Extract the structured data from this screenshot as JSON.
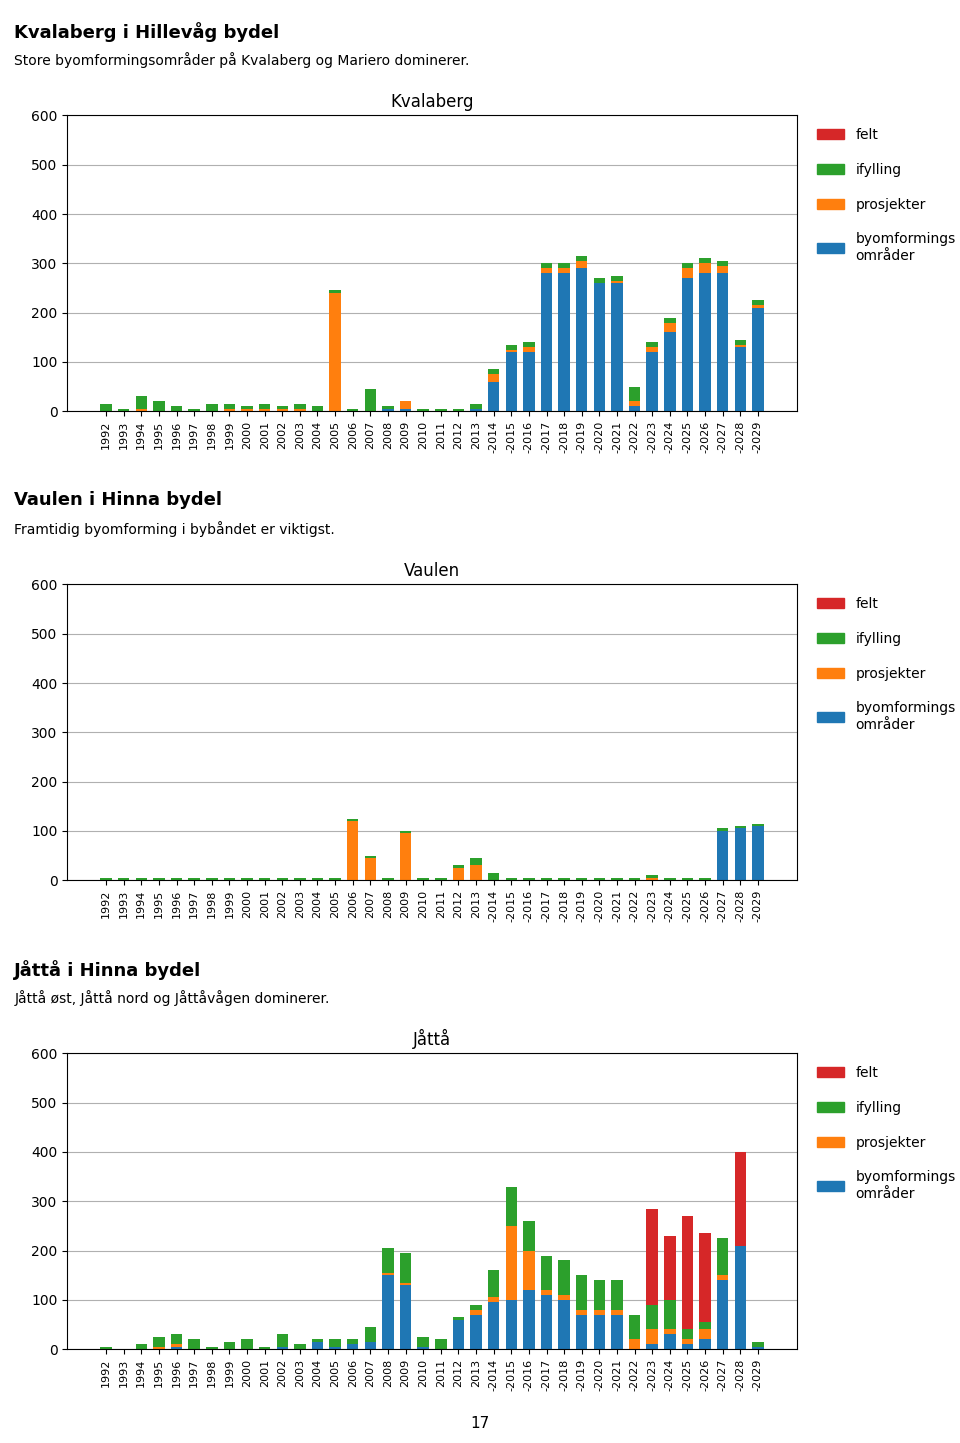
{
  "chart_data": [
    {
      "type": "bar",
      "stacked": true,
      "grid": true,
      "legend": "upper left",
      "title": "Kvalaberg",
      "annotations": [
        "Kvalaberg i Hillevåg bydel"
      ],
      "subtitle": "Store byomformingsområder på Kvalaberg og Mariero dominerer.",
      "categories": [
        "1992",
        "1993",
        "1994",
        "1995",
        "1996",
        "1997",
        "1998",
        "1999",
        "2000",
        "2001",
        "2002",
        "2003",
        "2004",
        "2005",
        "2006",
        "2007",
        "2008",
        "2009",
        "2010",
        "2011",
        "2012",
        "2013",
        "-2014",
        "-2015",
        "-2016",
        "-2017",
        "-2018",
        "-2019",
        "-2020",
        "-2021",
        "-2022",
        "-2023",
        "-2024",
        "-2025",
        "-2026",
        "-2027",
        "-2028",
        "-2029"
      ],
      "ylim": [
        0,
        600
      ],
      "yticks": [
        0,
        100,
        200,
        300,
        400,
        500,
        600
      ],
      "series": [
        {
          "name": "byomformings\nområder",
          "values": [
            0,
            0,
            0,
            0,
            0,
            0,
            0,
            0,
            0,
            0,
            0,
            0,
            0,
            0,
            0,
            0,
            5,
            5,
            0,
            0,
            0,
            5,
            60,
            120,
            120,
            280,
            280,
            290,
            260,
            260,
            10,
            120,
            160,
            270,
            280,
            280,
            130,
            210
          ]
        },
        {
          "name": "prosjekter",
          "values": [
            0,
            0,
            5,
            0,
            0,
            0,
            0,
            5,
            5,
            5,
            5,
            5,
            0,
            240,
            0,
            0,
            0,
            15,
            0,
            0,
            0,
            0,
            15,
            5,
            10,
            10,
            10,
            15,
            0,
            5,
            10,
            10,
            20,
            20,
            20,
            15,
            5,
            5
          ]
        },
        {
          "name": "ifylling",
          "values": [
            15,
            5,
            25,
            20,
            10,
            5,
            15,
            10,
            5,
            10,
            5,
            10,
            10,
            5,
            5,
            45,
            5,
            0,
            5,
            5,
            5,
            10,
            10,
            10,
            10,
            10,
            10,
            10,
            10,
            10,
            30,
            10,
            10,
            10,
            10,
            10,
            10,
            10
          ]
        },
        {
          "name": "felt",
          "values": [
            0,
            0,
            0,
            0,
            0,
            0,
            0,
            0,
            0,
            0,
            0,
            0,
            0,
            0,
            0,
            0,
            0,
            0,
            0,
            0,
            0,
            0,
            0,
            0,
            0,
            0,
            0,
            0,
            0,
            0,
            0,
            0,
            0,
            0,
            0,
            0,
            0,
            0
          ]
        }
      ]
    },
    {
      "type": "bar",
      "stacked": true,
      "grid": true,
      "legend": "upper left",
      "title": "Vaulen",
      "annotations": [
        "Vaulen i Hinna bydel"
      ],
      "subtitle": "Framtidig byomforming i bybåndet er viktigst.",
      "categories": [
        "1992",
        "1993",
        "1994",
        "1995",
        "1996",
        "1997",
        "1998",
        "1999",
        "2000",
        "2001",
        "2002",
        "2003",
        "2004",
        "2005",
        "2006",
        "2007",
        "2008",
        "2009",
        "2010",
        "2011",
        "2012",
        "2013",
        "-2014",
        "-2015",
        "-2016",
        "-2017",
        "-2018",
        "-2019",
        "-2020",
        "-2021",
        "-2022",
        "-2023",
        "-2024",
        "-2025",
        "-2026",
        "-2027",
        "-2028",
        "-2029"
      ],
      "ylim": [
        0,
        600
      ],
      "yticks": [
        0,
        100,
        200,
        300,
        400,
        500,
        600
      ],
      "series": [
        {
          "name": "byomformings\nområder",
          "values": [
            0,
            0,
            0,
            0,
            0,
            0,
            0,
            0,
            0,
            0,
            0,
            0,
            0,
            0,
            0,
            0,
            0,
            0,
            0,
            0,
            0,
            0,
            0,
            0,
            0,
            0,
            0,
            0,
            0,
            0,
            0,
            0,
            0,
            0,
            0,
            100,
            105,
            110
          ]
        },
        {
          "name": "prosjekter",
          "values": [
            0,
            0,
            0,
            0,
            0,
            0,
            0,
            0,
            0,
            0,
            0,
            0,
            0,
            0,
            120,
            45,
            0,
            95,
            0,
            0,
            25,
            30,
            0,
            0,
            0,
            0,
            0,
            0,
            0,
            0,
            0,
            5,
            0,
            0,
            0,
            0,
            0,
            0
          ]
        },
        {
          "name": "ifylling",
          "values": [
            5,
            5,
            5,
            5,
            5,
            5,
            5,
            5,
            5,
            5,
            5,
            5,
            5,
            5,
            5,
            5,
            5,
            5,
            5,
            5,
            5,
            15,
            15,
            5,
            5,
            5,
            5,
            5,
            5,
            5,
            5,
            5,
            5,
            5,
            5,
            5,
            5,
            5
          ]
        },
        {
          "name": "felt",
          "values": [
            0,
            0,
            0,
            0,
            0,
            0,
            0,
            0,
            0,
            0,
            0,
            0,
            0,
            0,
            0,
            0,
            0,
            0,
            0,
            0,
            0,
            0,
            0,
            0,
            0,
            0,
            0,
            0,
            0,
            0,
            0,
            0,
            0,
            0,
            0,
            0,
            0,
            0
          ]
        }
      ]
    },
    {
      "type": "bar",
      "stacked": true,
      "grid": true,
      "legend": "upper left",
      "title": "Jåttå",
      "annotations": [
        "Jåttå i Hinna bydel",
        "17"
      ],
      "subtitle": "Jåttå øst, Jåttå nord og Jåttåvågen dominerer.",
      "categories": [
        "1992",
        "1993",
        "1994",
        "1995",
        "1996",
        "1997",
        "1998",
        "1999",
        "2000",
        "2001",
        "2002",
        "2003",
        "2004",
        "2005",
        "2006",
        "2007",
        "2008",
        "2009",
        "2010",
        "2011",
        "2012",
        "2013",
        "-2014",
        "-2015",
        "-2016",
        "-2017",
        "-2018",
        "-2019",
        "-2020",
        "-2021",
        "-2022",
        "-2023",
        "-2024",
        "-2025",
        "-2026",
        "-2027",
        "-2028",
        "-2029"
      ],
      "ylim": [
        0,
        600
      ],
      "yticks": [
        0,
        100,
        200,
        300,
        400,
        500,
        600
      ],
      "series": [
        {
          "name": "byomformings\nområder",
          "values": [
            0,
            0,
            0,
            0,
            5,
            0,
            0,
            0,
            0,
            0,
            5,
            0,
            15,
            5,
            10,
            15,
            150,
            130,
            5,
            0,
            60,
            70,
            95,
            100,
            120,
            110,
            100,
            70,
            70,
            70,
            0,
            10,
            30,
            10,
            20,
            140,
            210,
            5
          ]
        },
        {
          "name": "prosjekter",
          "values": [
            0,
            0,
            0,
            5,
            5,
            0,
            0,
            0,
            0,
            0,
            0,
            0,
            0,
            0,
            0,
            0,
            5,
            5,
            0,
            0,
            0,
            10,
            10,
            150,
            80,
            10,
            10,
            10,
            10,
            10,
            20,
            30,
            10,
            10,
            20,
            10,
            0,
            0
          ]
        },
        {
          "name": "ifylling",
          "values": [
            5,
            0,
            10,
            20,
            20,
            20,
            5,
            15,
            20,
            5,
            25,
            10,
            5,
            15,
            10,
            30,
            50,
            60,
            20,
            20,
            5,
            10,
            55,
            80,
            60,
            70,
            70,
            70,
            60,
            60,
            50,
            50,
            60,
            20,
            15,
            75,
            0,
            10
          ]
        },
        {
          "name": "felt",
          "values": [
            0,
            0,
            0,
            0,
            0,
            0,
            0,
            0,
            0,
            0,
            0,
            0,
            0,
            0,
            0,
            0,
            0,
            0,
            0,
            0,
            0,
            0,
            0,
            0,
            0,
            0,
            0,
            0,
            0,
            0,
            0,
            195,
            130,
            230,
            180,
            0,
            190,
            0
          ]
        }
      ]
    }
  ]
}
